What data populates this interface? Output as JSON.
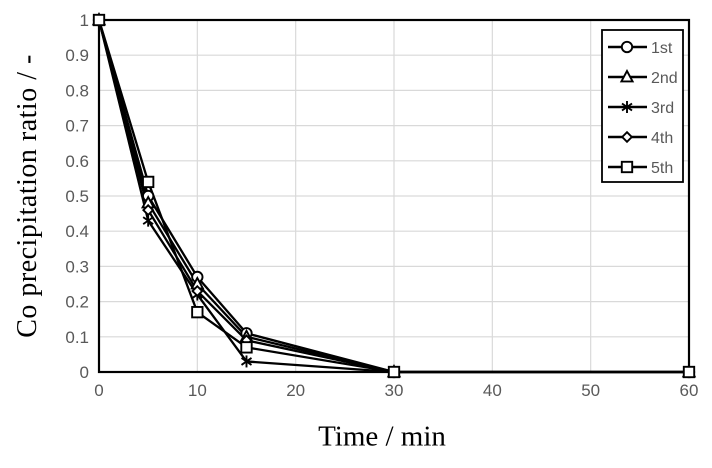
{
  "chart_data": {
    "type": "line",
    "title": "",
    "xlabel": "Time / min",
    "ylabel": "Co precipitation ratio / -",
    "x": [
      0,
      5,
      10,
      15,
      30,
      60
    ],
    "series": [
      {
        "name": "1st",
        "marker": "circle",
        "values": [
          1,
          0.5,
          0.27,
          0.11,
          0,
          0
        ]
      },
      {
        "name": "2nd",
        "marker": "triangle",
        "values": [
          1,
          0.48,
          0.25,
          0.1,
          0,
          0
        ]
      },
      {
        "name": "3rd",
        "marker": "asterisk",
        "values": [
          1,
          0.43,
          0.22,
          0.03,
          0,
          0
        ]
      },
      {
        "name": "4th",
        "marker": "diamond",
        "values": [
          1,
          0.46,
          0.23,
          0.09,
          0,
          0
        ]
      },
      {
        "name": "5th",
        "marker": "square",
        "values": [
          1,
          0.54,
          0.17,
          0.07,
          0,
          0
        ]
      }
    ],
    "xlim": [
      0,
      60
    ],
    "ylim": [
      0,
      1
    ],
    "x_tick_labels": [
      "0",
      "10",
      "20",
      "30",
      "40",
      "50",
      "60"
    ],
    "y_tick_labels": [
      "0",
      "0.1",
      "0.2",
      "0.3",
      "0.4",
      "0.5",
      "0.6",
      "0.7",
      "0.8",
      "0.9",
      "1"
    ],
    "grid": true,
    "legend": {
      "position": "top-right",
      "entries": [
        "1st",
        "2nd",
        "3rd",
        "4th",
        "5th"
      ]
    },
    "colors": {
      "series_line": "#000000",
      "marker_fill": "#ffffff",
      "axis": "#000000",
      "gridline": "#d9d9d9",
      "tick_label": "#595959",
      "legend_text": "#595959",
      "legend_border": "#000000",
      "legend_bg": "#ffffff",
      "axis_title": "#000000",
      "background": "#ffffff"
    }
  }
}
